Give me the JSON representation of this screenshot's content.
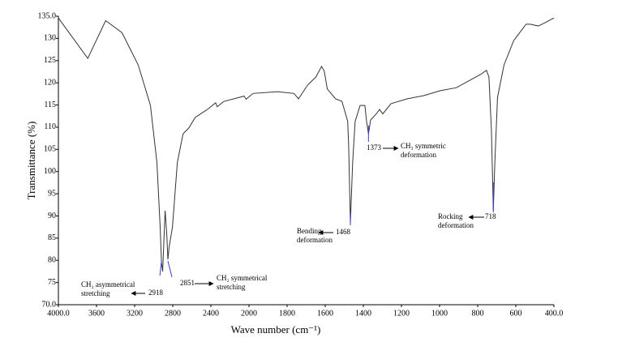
{
  "chart_data": {
    "type": "line",
    "x_label": "Wave number (cm⁻¹)",
    "y_label": "Transmittance   (%)",
    "color": "#333333",
    "x": [
      4000,
      3692,
      3504,
      3333,
      3162,
      3034,
      2966,
      2932,
      2918,
      2906,
      2880,
      2863,
      2851,
      2838,
      2803,
      2752,
      2692,
      2632,
      2564,
      2436,
      2350,
      2333,
      2265,
      2051,
      2030,
      1979,
      1850,
      1764,
      1740,
      1692,
      1649,
      1619,
      1605,
      1589,
      1546,
      1512,
      1482,
      1477,
      1468,
      1456,
      1443,
      1417,
      1392,
      1383,
      1373,
      1362,
      1332,
      1315,
      1298,
      1255,
      1169,
      1083,
      998,
      912,
      848,
      784,
      754,
      741,
      728,
      718,
      710,
      696,
      662,
      611,
      546,
      525,
      482,
      448,
      400
    ],
    "values": [
      134.6,
      125.5,
      134.0,
      131.3,
      124.0,
      114.9,
      102.0,
      87.5,
      79.5,
      77.5,
      91.2,
      86.0,
      80.2,
      83.0,
      87.5,
      102.0,
      108.5,
      109.8,
      112.2,
      114.0,
      115.5,
      114.6,
      115.8,
      117.0,
      116.3,
      117.6,
      118.0,
      117.6,
      116.4,
      119.5,
      121.3,
      123.7,
      122.6,
      118.6,
      116.4,
      115.8,
      111.3,
      105.8,
      88.4,
      102.1,
      111.3,
      114.9,
      114.9,
      111.3,
      108.5,
      111.6,
      113.0,
      114.0,
      113.0,
      115.3,
      116.4,
      117.1,
      118.2,
      118.9,
      120.4,
      121.9,
      122.8,
      121.3,
      109.4,
      91.2,
      102.0,
      116.7,
      124.0,
      129.5,
      133.2,
      133.2,
      132.8,
      133.5,
      134.6
    ],
    "xlim": [
      4000,
      400
    ],
    "ylim": [
      70,
      135
    ],
    "xticks": [
      {
        "value": 4000,
        "label": "4000.0"
      },
      3600,
      3200,
      2800,
      2400,
      2000,
      1800,
      1600,
      1400,
      1200,
      1000,
      800,
      600,
      {
        "value": 400,
        "label": "400.0"
      }
    ],
    "yticks": [
      {
        "value": 70,
        "label": "70.0"
      },
      75,
      80,
      85,
      90,
      95,
      100,
      105,
      110,
      115,
      120,
      125,
      130,
      {
        "value": 135,
        "label": "135.0"
      }
    ],
    "annotations": [
      {
        "x": 2918,
        "text": [
          "CH₂ asymmetrical",
          "stretching"
        ]
      },
      {
        "x": 2851,
        "text": [
          "CH₂ symmetrical",
          "stretching"
        ]
      },
      {
        "x": 1468,
        "text": [
          "Bending",
          "deformation"
        ]
      },
      {
        "x": 1373,
        "text": [
          "CH₃  symmetric",
          "deformation"
        ]
      },
      {
        "x": 718,
        "text": [
          "Rocking",
          "deformation"
        ]
      }
    ]
  }
}
